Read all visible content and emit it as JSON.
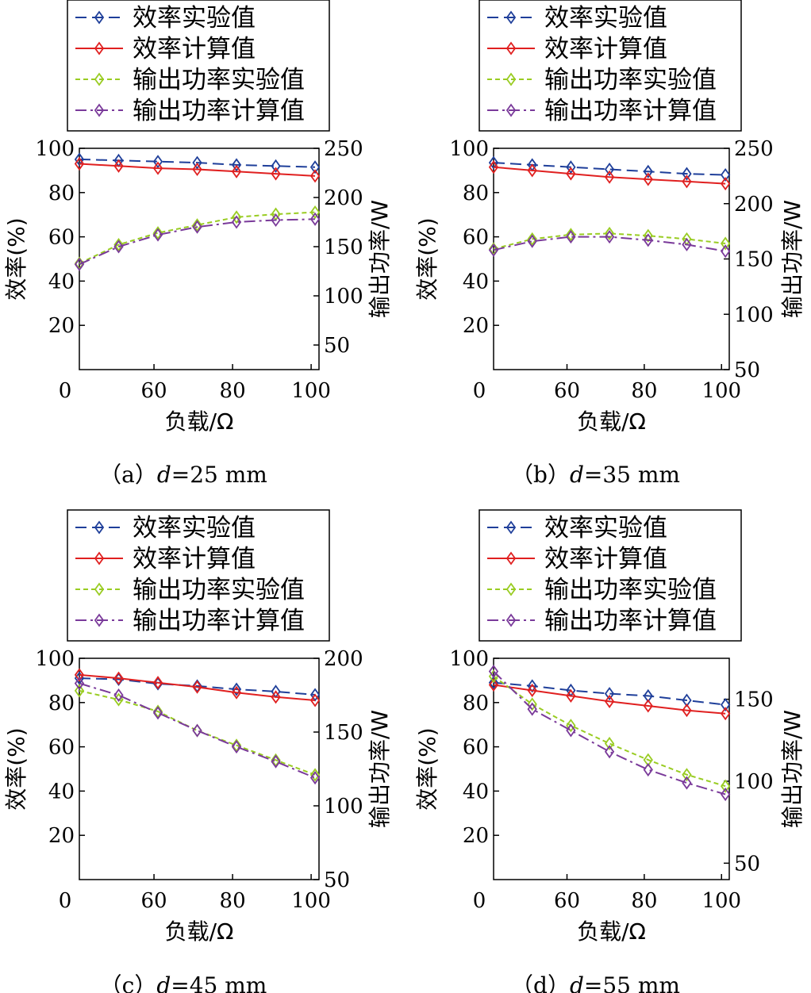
{
  "legend_labels": [
    "效率实验值",
    "效率计算值",
    "输出功率实验值",
    "输出功率计算值"
  ],
  "series_colors": [
    "#1f3f9a",
    "#e02020",
    "#99cc22",
    "#7a3a9a"
  ],
  "chart_data": [
    {
      "type": "line",
      "caption_prefix": "（a）",
      "caption_var": "d",
      "caption_value": "=25 mm",
      "xlabel": "负载/Ω",
      "ylabel": "效率(%)",
      "y2label": "输出功率/W",
      "x": [
        41,
        51,
        61,
        71,
        81,
        91,
        101
      ],
      "xlim": [
        41,
        102
      ],
      "xticks": [
        60,
        80,
        100
      ],
      "xtick_zero_label": "0",
      "ylim": [
        0,
        100
      ],
      "yticks": [
        20,
        40,
        60,
        80,
        100
      ],
      "y2lim": [
        25,
        250
      ],
      "y2ticks": [
        50,
        100,
        150,
        200,
        250
      ],
      "series": [
        {
          "name": "效率实验值",
          "axis": "left",
          "values": [
            95,
            94.5,
            94,
            93.5,
            92.5,
            92,
            91.5
          ]
        },
        {
          "name": "效率计算值",
          "axis": "left",
          "values": [
            93,
            92,
            91,
            90.5,
            89.5,
            88.5,
            87.5
          ]
        },
        {
          "name": "输出功率实验值",
          "axis": "right",
          "values": [
            133,
            152,
            164,
            172,
            180,
            183,
            185
          ]
        },
        {
          "name": "输出功率计算值",
          "axis": "right",
          "values": [
            132,
            150,
            162,
            170,
            175,
            177,
            178
          ]
        }
      ]
    },
    {
      "type": "line",
      "caption_prefix": "（b）",
      "caption_var": "d",
      "caption_value": "=35 mm",
      "xlabel": "负载/Ω",
      "ylabel": "效率(%)",
      "y2label": "输出功率/W",
      "x": [
        41,
        51,
        61,
        71,
        81,
        91,
        101
      ],
      "xlim": [
        41,
        102
      ],
      "xticks": [
        60,
        80,
        100
      ],
      "xtick_zero_label": "0",
      "ylim": [
        0,
        100
      ],
      "yticks": [
        20,
        40,
        60,
        80,
        100
      ],
      "y2lim": [
        50,
        250
      ],
      "y2ticks": [
        50,
        100,
        150,
        200,
        250
      ],
      "series": [
        {
          "name": "效率实验值",
          "axis": "left",
          "values": [
            93.5,
            92.5,
            91.5,
            90.5,
            89.5,
            88.5,
            88
          ]
        },
        {
          "name": "效率计算值",
          "axis": "left",
          "values": [
            91.5,
            90,
            88.5,
            87,
            86,
            85,
            84
          ]
        },
        {
          "name": "输出功率实验值",
          "axis": "right",
          "values": [
            159,
            168,
            172,
            173,
            171,
            168,
            164
          ]
        },
        {
          "name": "输出功率计算值",
          "axis": "right",
          "values": [
            158,
            166,
            170,
            170,
            167,
            163,
            157
          ]
        }
      ]
    },
    {
      "type": "line",
      "caption_prefix": "（c）",
      "caption_var": "d",
      "caption_value": "=45 mm",
      "xlabel": "负载/Ω",
      "ylabel": "效率(%)",
      "y2label": "输出功率/W",
      "x": [
        41,
        51,
        61,
        71,
        81,
        91,
        101
      ],
      "xlim": [
        41,
        102
      ],
      "xticks": [
        60,
        80,
        100
      ],
      "xtick_zero_label": "0",
      "ylim": [
        0,
        100
      ],
      "yticks": [
        20,
        40,
        60,
        80,
        100
      ],
      "y2lim": [
        50,
        200
      ],
      "y2ticks": [
        50,
        100,
        150,
        200
      ],
      "series": [
        {
          "name": "效率实验值",
          "axis": "left",
          "values": [
            91,
            90.5,
            88.5,
            87.5,
            86,
            85,
            83.5
          ]
        },
        {
          "name": "效率计算值",
          "axis": "left",
          "values": [
            92.5,
            91,
            89,
            87,
            84.5,
            82.5,
            81
          ]
        },
        {
          "name": "输出功率实验值",
          "axis": "right",
          "values": [
            178,
            172,
            164,
            151,
            141,
            131,
            121
          ]
        },
        {
          "name": "输出功率计算值",
          "axis": "right",
          "values": [
            183,
            175,
            163,
            151,
            140,
            130,
            119
          ]
        }
      ]
    },
    {
      "type": "line",
      "caption_prefix": "（d）",
      "caption_var": "d",
      "caption_value": "=55 mm",
      "xlabel": "负载/Ω",
      "ylabel": "效率(%)",
      "y2label": "输出功率/W",
      "x": [
        41,
        51,
        61,
        71,
        81,
        91,
        101
      ],
      "xlim": [
        41,
        102
      ],
      "xticks": [
        60,
        80,
        100
      ],
      "xtick_zero_label": "0",
      "ylim": [
        0,
        100
      ],
      "yticks": [
        20,
        40,
        60,
        80,
        100
      ],
      "y2lim": [
        40,
        175
      ],
      "y2ticks": [
        50,
        100,
        150
      ],
      "series": [
        {
          "name": "效率实验值",
          "axis": "left",
          "values": [
            89,
            87.5,
            85.5,
            84,
            83,
            81,
            79
          ]
        },
        {
          "name": "效率计算值",
          "axis": "left",
          "values": [
            88,
            85.5,
            83,
            80.5,
            78.5,
            76.5,
            75
          ]
        },
        {
          "name": "输出功率实验值",
          "axis": "right",
          "values": [
            164,
            147,
            134,
            123,
            113,
            104,
            97
          ]
        },
        {
          "name": "输出功率计算值",
          "axis": "right",
          "values": [
            167,
            144,
            131,
            118,
            107,
            99,
            92
          ]
        }
      ]
    }
  ]
}
